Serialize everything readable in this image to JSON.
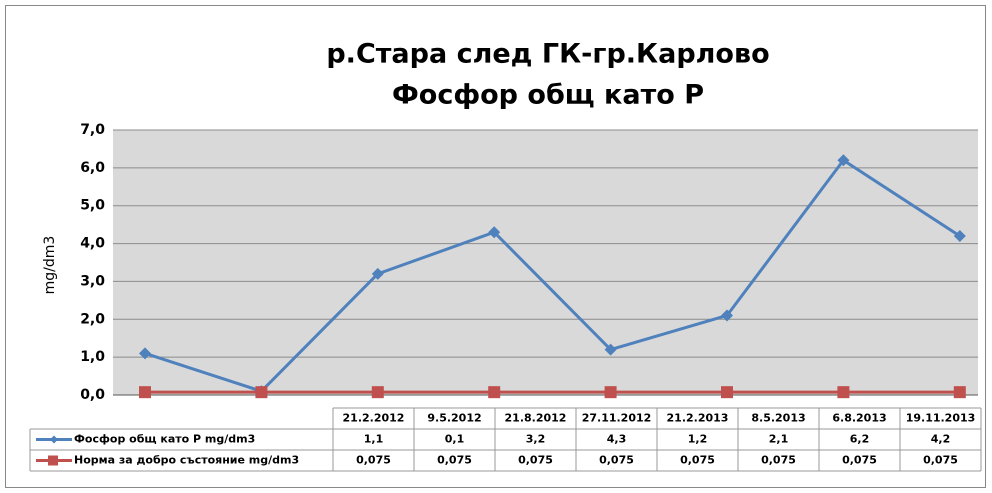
{
  "chart_data": {
    "type": "line",
    "title": "р.Стара след ГК-гр.Карлово",
    "subtitle": "Фосфор общ като Р",
    "y_label": "mg/dm3",
    "categories": [
      "21.2.2012",
      "9.5.2012",
      "21.8.2012",
      "27.11.2012",
      "21.2.2013",
      "8.5.2013",
      "6.8.2013",
      "19.11.2013"
    ],
    "series": [
      {
        "name": "Фосфор общ като Р mg/dm3",
        "color": "#4f81bd",
        "marker": "diamond",
        "values": [
          1.1,
          0.1,
          3.2,
          4.3,
          1.2,
          2.1,
          6.2,
          4.2
        ],
        "value_labels": [
          "1,1",
          "0,1",
          "3,2",
          "4,3",
          "1,2",
          "2,1",
          "6,2",
          "4,2"
        ]
      },
      {
        "name": "Норма за добро състояние mg/dm3",
        "color": "#c0504d",
        "marker": "square",
        "values": [
          0.075,
          0.075,
          0.075,
          0.075,
          0.075,
          0.075,
          0.075,
          0.075
        ],
        "value_labels": [
          "0,075",
          "0,075",
          "0,075",
          "0,075",
          "0,075",
          "0,075",
          "0,075",
          "0,075"
        ]
      }
    ],
    "ylim": [
      0,
      7
    ],
    "yticks": [
      {
        "value": 0,
        "label": "0,0"
      },
      {
        "value": 1,
        "label": "1,0"
      },
      {
        "value": 2,
        "label": "2,0"
      },
      {
        "value": 3,
        "label": "3,0"
      },
      {
        "value": 4,
        "label": "4,0"
      },
      {
        "value": 5,
        "label": "5,0"
      },
      {
        "value": 6,
        "label": "6,0"
      },
      {
        "value": 7,
        "label": "7,0"
      }
    ],
    "grid": true
  }
}
